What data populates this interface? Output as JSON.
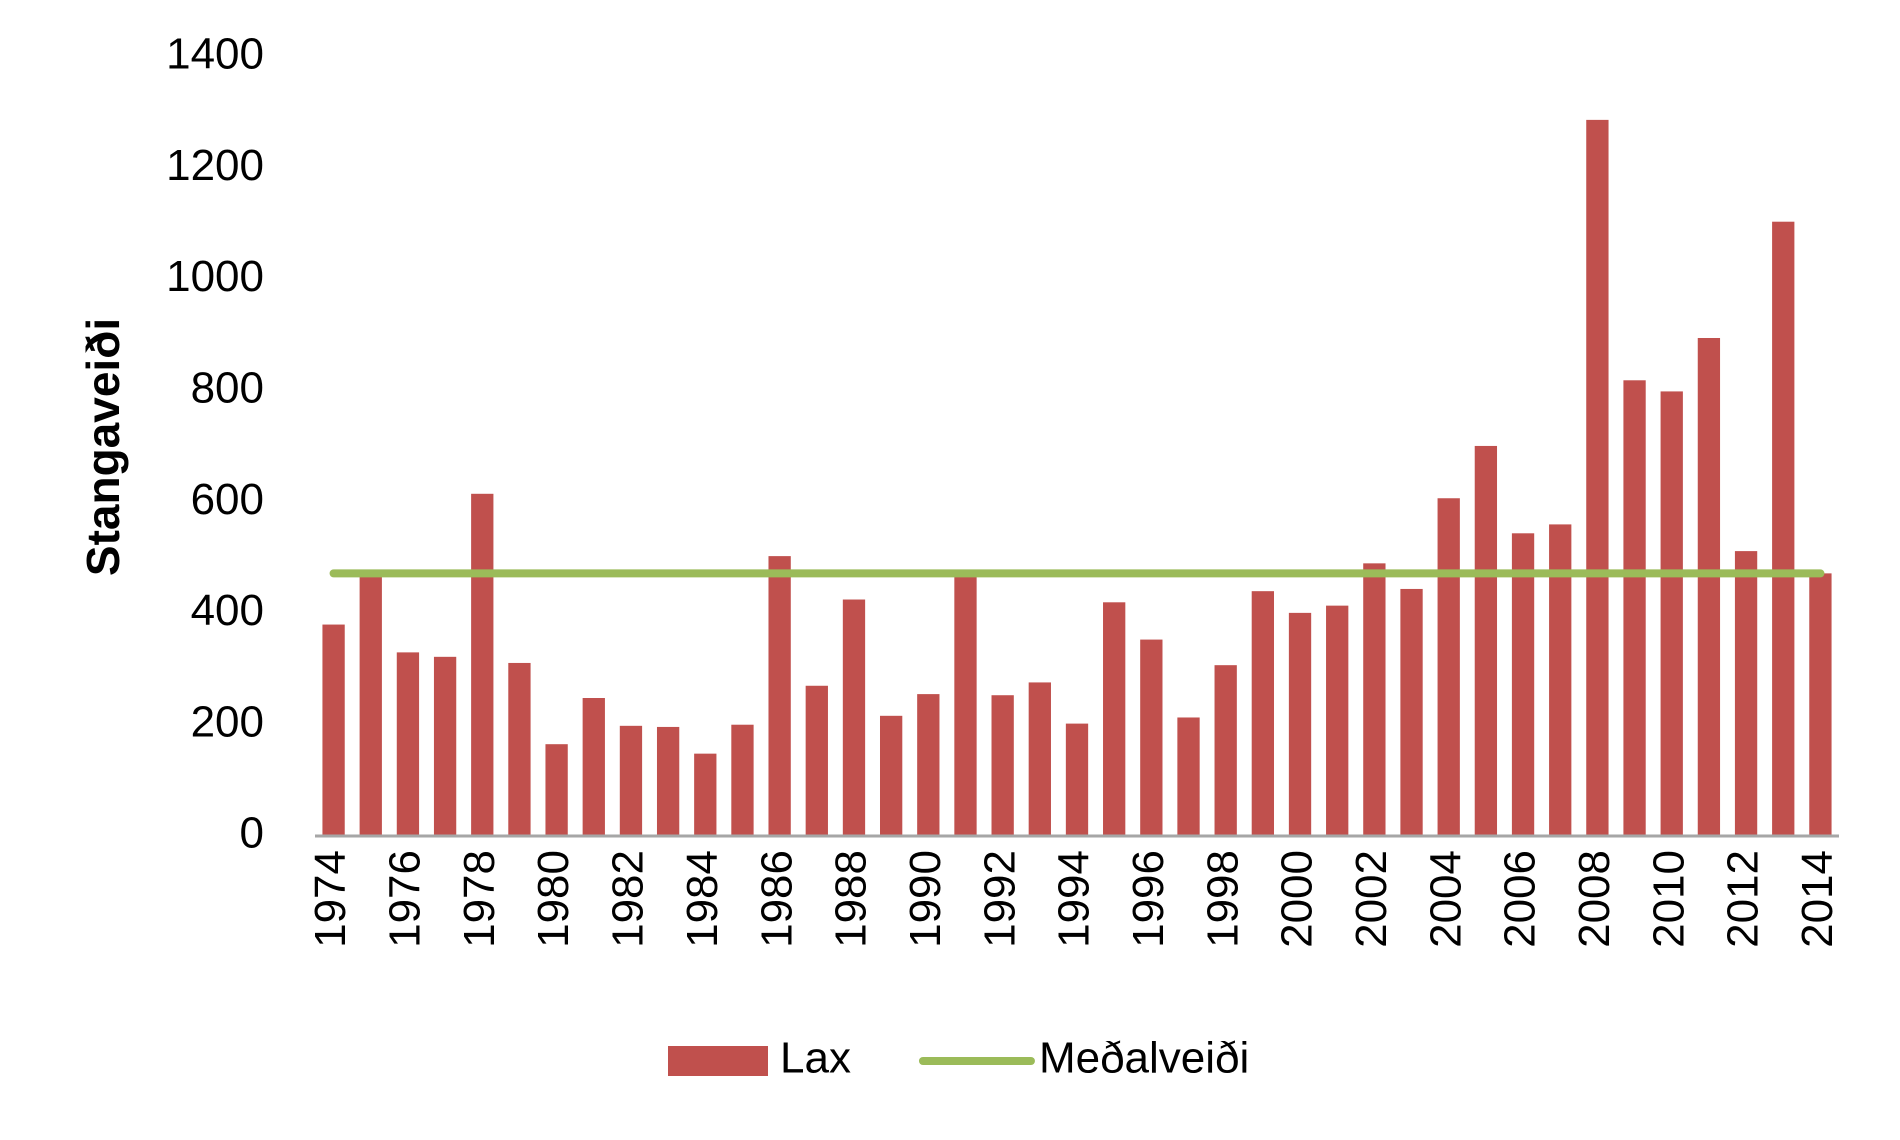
{
  "chart_data": {
    "type": "bar",
    "y_label": "Stangaveiði",
    "categories": [
      "1974",
      null,
      "1976",
      null,
      "1978",
      null,
      "1980",
      null,
      "1982",
      null,
      "1984",
      null,
      "1986",
      null,
      "1988",
      null,
      "1990",
      null,
      "1992",
      null,
      "1994",
      null,
      "1996",
      null,
      "1998",
      null,
      "2000",
      null,
      "2002",
      null,
      "2004",
      null,
      "2006",
      null,
      "2008",
      null,
      "2010",
      null,
      "2012",
      null,
      "2014"
    ],
    "series": [
      {
        "name": "Lax",
        "type": "bar",
        "color": "#c0504d",
        "values": [
          380,
          470,
          330,
          322,
          615,
          311,
          165,
          248,
          198,
          196,
          148,
          200,
          503,
          270,
          425,
          216,
          255,
          477,
          253,
          276,
          202,
          420,
          353,
          213,
          307,
          440,
          401,
          414,
          490,
          444,
          607,
          701,
          544,
          560,
          1287,
          819,
          799,
          895,
          512,
          1104,
          472
        ]
      },
      {
        "name": "Meðalveiði",
        "type": "line",
        "color": "#9bbb59",
        "values": [
          472,
          472,
          472,
          472,
          472,
          472,
          472,
          472,
          472,
          472,
          472,
          472,
          472,
          472,
          472,
          472,
          472,
          472,
          472,
          472,
          472,
          472,
          472,
          472,
          472,
          472,
          472,
          472,
          472,
          472,
          472,
          472,
          472,
          472,
          472,
          472,
          472,
          472,
          472,
          472,
          472
        ]
      }
    ],
    "ylim": [
      0,
      1400
    ],
    "yticks": [
      0,
      200,
      400,
      600,
      800,
      1000,
      1200,
      1400
    ],
    "grid": false,
    "legend": "bottom"
  }
}
